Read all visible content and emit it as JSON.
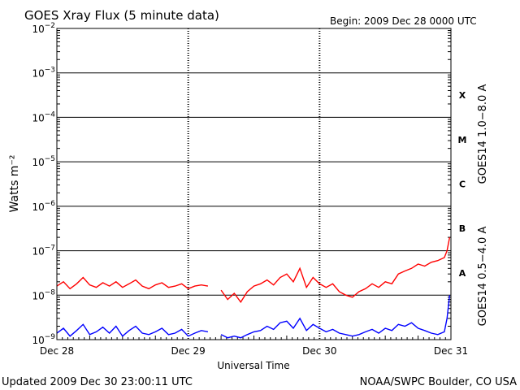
{
  "chart_data": {
    "type": "line",
    "title": "GOES Xray Flux (5 minute data)",
    "begin_label": "Begin:  2009 Dec 28 0000 UTC",
    "xlabel": "Universal Time",
    "ylabel": "Watts m⁻²",
    "yscale": "log",
    "ylim": [
      1e-09,
      0.01
    ],
    "x_ticks": [
      "Dec 28",
      "Dec 29",
      "Dec 30",
      "Dec 31"
    ],
    "xlim_days": [
      0,
      3
    ],
    "y_ticks": [
      {
        "base": "10",
        "exp": "−9",
        "value": 1e-09
      },
      {
        "base": "10",
        "exp": "−8",
        "value": 1e-08
      },
      {
        "base": "10",
        "exp": "−7",
        "value": 1e-07
      },
      {
        "base": "10",
        "exp": "−6",
        "value": 1e-06
      },
      {
        "base": "10",
        "exp": "−5",
        "value": 1e-05
      },
      {
        "base": "10",
        "exp": "−4",
        "value": 0.0001
      },
      {
        "base": "10",
        "exp": "−3",
        "value": 0.001
      },
      {
        "base": "10",
        "exp": "−2",
        "value": 0.01
      }
    ],
    "flare_classes": [
      {
        "label": "A",
        "value": 3.16e-08
      },
      {
        "label": "B",
        "value": 3.16e-07
      },
      {
        "label": "C",
        "value": 3.16e-06
      },
      {
        "label": "M",
        "value": 3.16e-05
      },
      {
        "label": "X",
        "value": 0.000316
      }
    ],
    "grid": true,
    "series": [
      {
        "name": "GOES14 1.0−8.0 A",
        "color": "#ff0000",
        "segments": [
          {
            "x": [
              0,
              0.05,
              0.1,
              0.15,
              0.2,
              0.25,
              0.3,
              0.35,
              0.4,
              0.45,
              0.5,
              0.55,
              0.6,
              0.65,
              0.7,
              0.75,
              0.8,
              0.85,
              0.9,
              0.95,
              1.0,
              1.05,
              1.1,
              1.15
            ],
            "y": [
              1.6e-08,
              2e-08,
              1.4e-08,
              1.8e-08,
              2.5e-08,
              1.7e-08,
              1.5e-08,
              1.9e-08,
              1.6e-08,
              2e-08,
              1.5e-08,
              1.8e-08,
              2.2e-08,
              1.6e-08,
              1.4e-08,
              1.7e-08,
              1.9e-08,
              1.5e-08,
              1.6e-08,
              1.8e-08,
              1.4e-08,
              1.6e-08,
              1.7e-08,
              1.6e-08
            ]
          },
          {
            "x": [
              1.25,
              1.3,
              1.35,
              1.4,
              1.45,
              1.5,
              1.55,
              1.6,
              1.65,
              1.7,
              1.75,
              1.8,
              1.85,
              1.9,
              1.95,
              2.0,
              2.05,
              2.1,
              2.15,
              2.2,
              2.25,
              2.3,
              2.35,
              2.4,
              2.45,
              2.5,
              2.55,
              2.6,
              2.65,
              2.7,
              2.75,
              2.8,
              2.85,
              2.9,
              2.95,
              2.97,
              2.99
            ],
            "y": [
              1.3e-08,
              8e-09,
              1.1e-08,
              7e-09,
              1.2e-08,
              1.6e-08,
              1.8e-08,
              2.2e-08,
              1.7e-08,
              2.5e-08,
              3e-08,
              2e-08,
              4e-08,
              1.5e-08,
              2.5e-08,
              1.8e-08,
              1.5e-08,
              1.8e-08,
              1.2e-08,
              1e-08,
              9e-09,
              1.2e-08,
              1.4e-08,
              1.8e-08,
              1.5e-08,
              2e-08,
              1.8e-08,
              3e-08,
              3.5e-08,
              4e-08,
              5e-08,
              4.5e-08,
              5.5e-08,
              6e-08,
              7e-08,
              1e-07,
              2e-07
            ]
          }
        ]
      },
      {
        "name": "GOES14 0.5−4.0 A",
        "color": "#0000ff",
        "segments": [
          {
            "x": [
              0,
              0.05,
              0.1,
              0.15,
              0.2,
              0.25,
              0.3,
              0.35,
              0.4,
              0.45,
              0.5,
              0.55,
              0.6,
              0.65,
              0.7,
              0.75,
              0.8,
              0.85,
              0.9,
              0.95,
              1.0,
              1.05,
              1.1,
              1.15
            ],
            "y": [
              1.4e-09,
              1.8e-09,
              1.2e-09,
              1.6e-09,
              2.2e-09,
              1.3e-09,
              1.5e-09,
              1.9e-09,
              1.4e-09,
              2e-09,
              1.2e-09,
              1.6e-09,
              2e-09,
              1.4e-09,
              1.3e-09,
              1.5e-09,
              1.8e-09,
              1.3e-09,
              1.4e-09,
              1.7e-09,
              1.2e-09,
              1.4e-09,
              1.6e-09,
              1.5e-09
            ]
          },
          {
            "x": [
              1.25,
              1.3,
              1.35,
              1.4,
              1.45,
              1.5,
              1.55,
              1.6,
              1.65,
              1.7,
              1.75,
              1.8,
              1.85,
              1.9,
              1.95,
              2.0,
              2.05,
              2.1,
              2.15,
              2.2,
              2.25,
              2.3,
              2.35,
              2.4,
              2.45,
              2.5,
              2.55,
              2.6,
              2.65,
              2.7,
              2.75,
              2.8,
              2.85,
              2.9,
              2.95,
              2.97,
              2.99
            ],
            "y": [
              1.3e-09,
              1.1e-09,
              1.2e-09,
              1.1e-09,
              1.3e-09,
              1.5e-09,
              1.6e-09,
              2e-09,
              1.7e-09,
              2.4e-09,
              2.6e-09,
              1.8e-09,
              3e-09,
              1.6e-09,
              2.2e-09,
              1.8e-09,
              1.5e-09,
              1.7e-09,
              1.4e-09,
              1.3e-09,
              1.2e-09,
              1.3e-09,
              1.5e-09,
              1.7e-09,
              1.4e-09,
              1.8e-09,
              1.6e-09,
              2.2e-09,
              2e-09,
              2.4e-09,
              1.8e-09,
              1.6e-09,
              1.4e-09,
              1.3e-09,
              1.5e-09,
              3e-09,
              1e-08
            ]
          }
        ]
      }
    ]
  },
  "footer": {
    "updated": "Updated 2009 Dec 30 23:00:11 UTC",
    "source": "NOAA/SWPC Boulder, CO USA"
  }
}
